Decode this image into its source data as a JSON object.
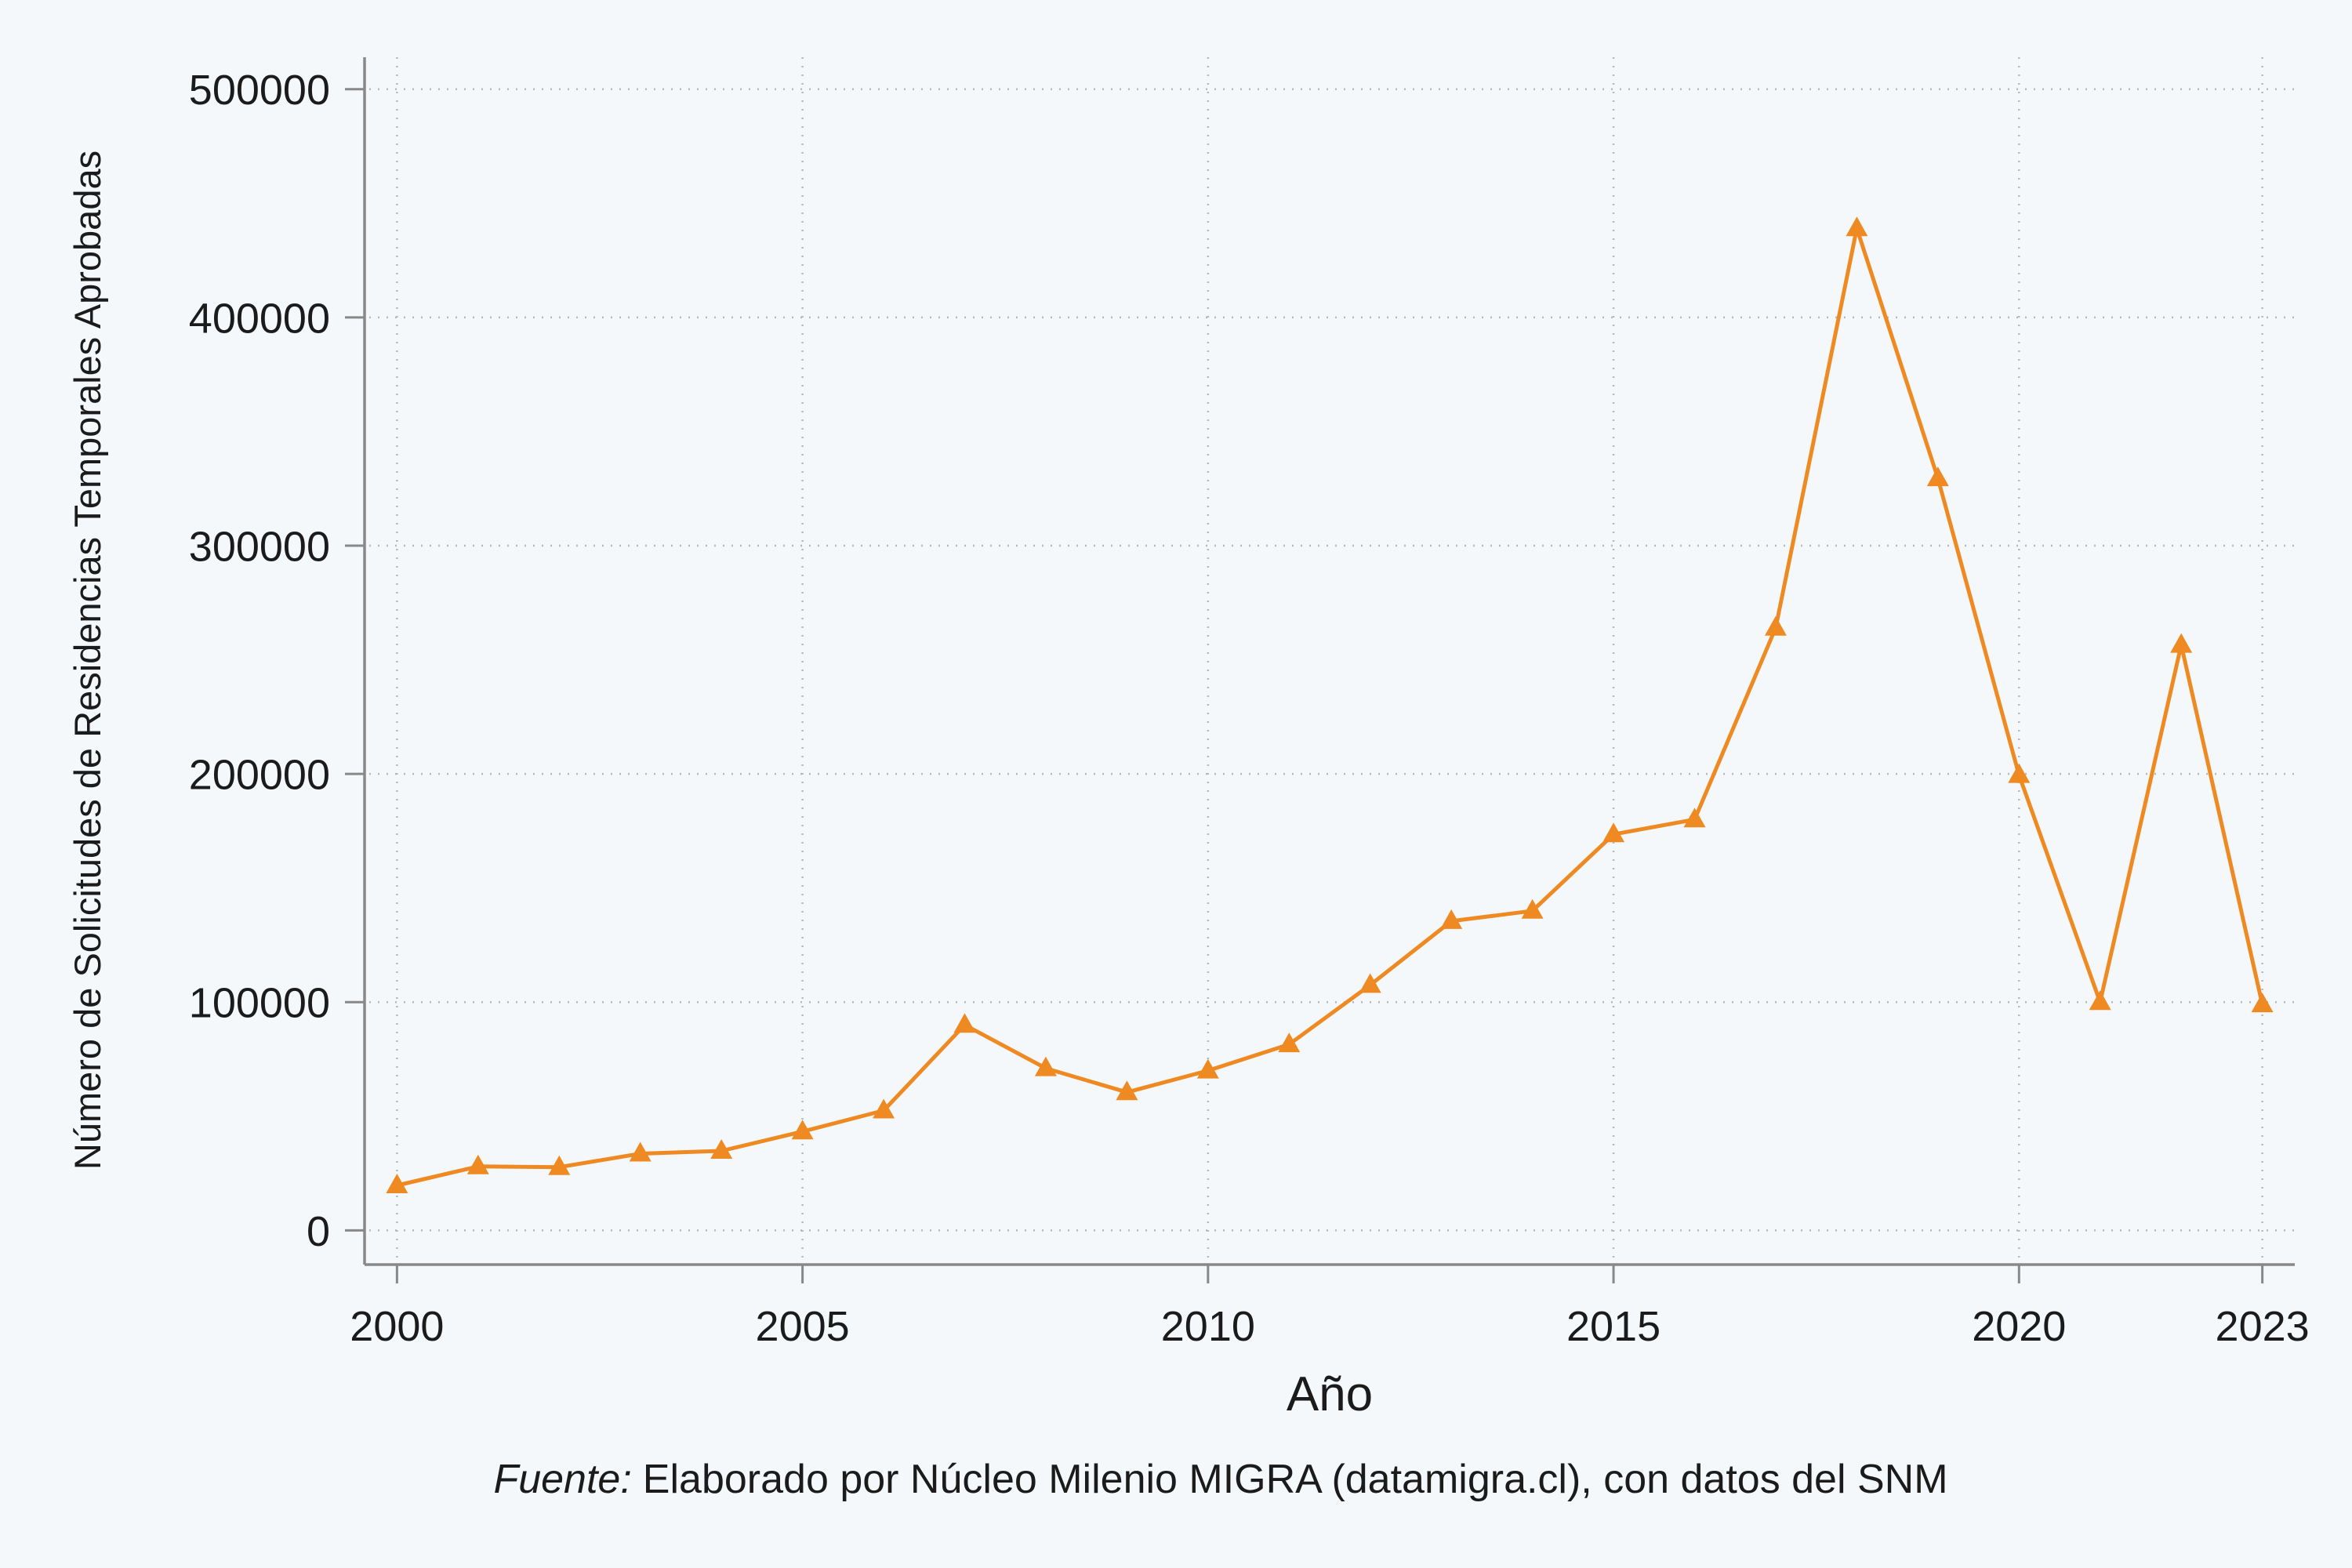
{
  "chart_data": {
    "type": "line",
    "x": [
      2000,
      2001,
      2002,
      2003,
      2004,
      2005,
      2006,
      2007,
      2008,
      2009,
      2010,
      2011,
      2012,
      2013,
      2014,
      2015,
      2016,
      2017,
      2018,
      2019,
      2020,
      2021,
      2022,
      2023
    ],
    "series": [
      {
        "values": [
          19700,
          28000,
          27700,
          33600,
          34800,
          43300,
          52500,
          90000,
          71000,
          60500,
          70000,
          81500,
          107500,
          135500,
          140000,
          173500,
          180000,
          264000,
          439000,
          329500,
          199500,
          100000,
          256500,
          99000
        ],
        "color": "#ef8a22",
        "marker": "triangle"
      }
    ],
    "xlabel": "Año",
    "ylabel": "Número de Solicitudes de Residencias Temporales Aprobadas",
    "xticks": [
      2000,
      2005,
      2010,
      2015,
      2020,
      2023
    ],
    "yticks": [
      0,
      100000,
      200000,
      300000,
      400000,
      500000
    ],
    "xlim": [
      1999.6,
      2023.4
    ],
    "ylim": [
      -15000,
      514000
    ],
    "grid": true,
    "grid_style": "dotted",
    "background_color": "#f4f8fb",
    "axis_color": "#888888",
    "grid_color": "#b5b9bd"
  },
  "source_note": {
    "label": "Fuente:",
    "text": "Elaborado por Núcleo Milenio MIGRA (datamigra.cl), con datos del SNM"
  }
}
